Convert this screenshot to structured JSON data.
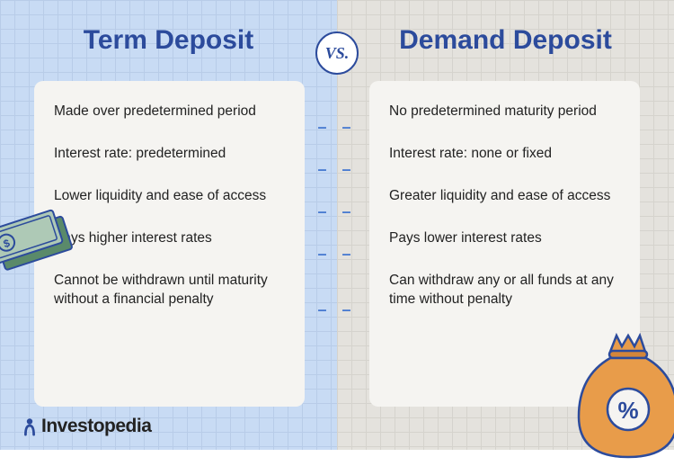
{
  "left": {
    "title": "Term Deposit",
    "items": [
      "Made over predetermined period",
      "Interest rate: predetermined",
      "Lower liquidity and ease of access",
      "Pays higher interest rates",
      "Cannot be withdrawn until maturity without a financial penalty"
    ],
    "bg_color": "#c8dbf4",
    "grid_color": "#b8cce8"
  },
  "right": {
    "title": "Demand Deposit",
    "items": [
      "No predetermined maturity period",
      "Interest rate: none or fixed",
      "Greater liquidity and ease of access",
      "Pays lower interest rates",
      "Can withdraw any or all funds at any time without penalty"
    ],
    "bg_color": "#e4e2dd",
    "grid_color": "#d5d3cd"
  },
  "vs_label": "VS.",
  "brand": "Investopedia",
  "colors": {
    "title": "#2c4b9c",
    "card_bg": "#f5f4f1",
    "text": "#222222",
    "dash": "#4a7cd1",
    "moneybag": "#e89c4a",
    "cash_green": "#5a8a6a",
    "cash_light": "#aec9b6"
  },
  "dash_positions": [
    131,
    178,
    225,
    272,
    334
  ]
}
